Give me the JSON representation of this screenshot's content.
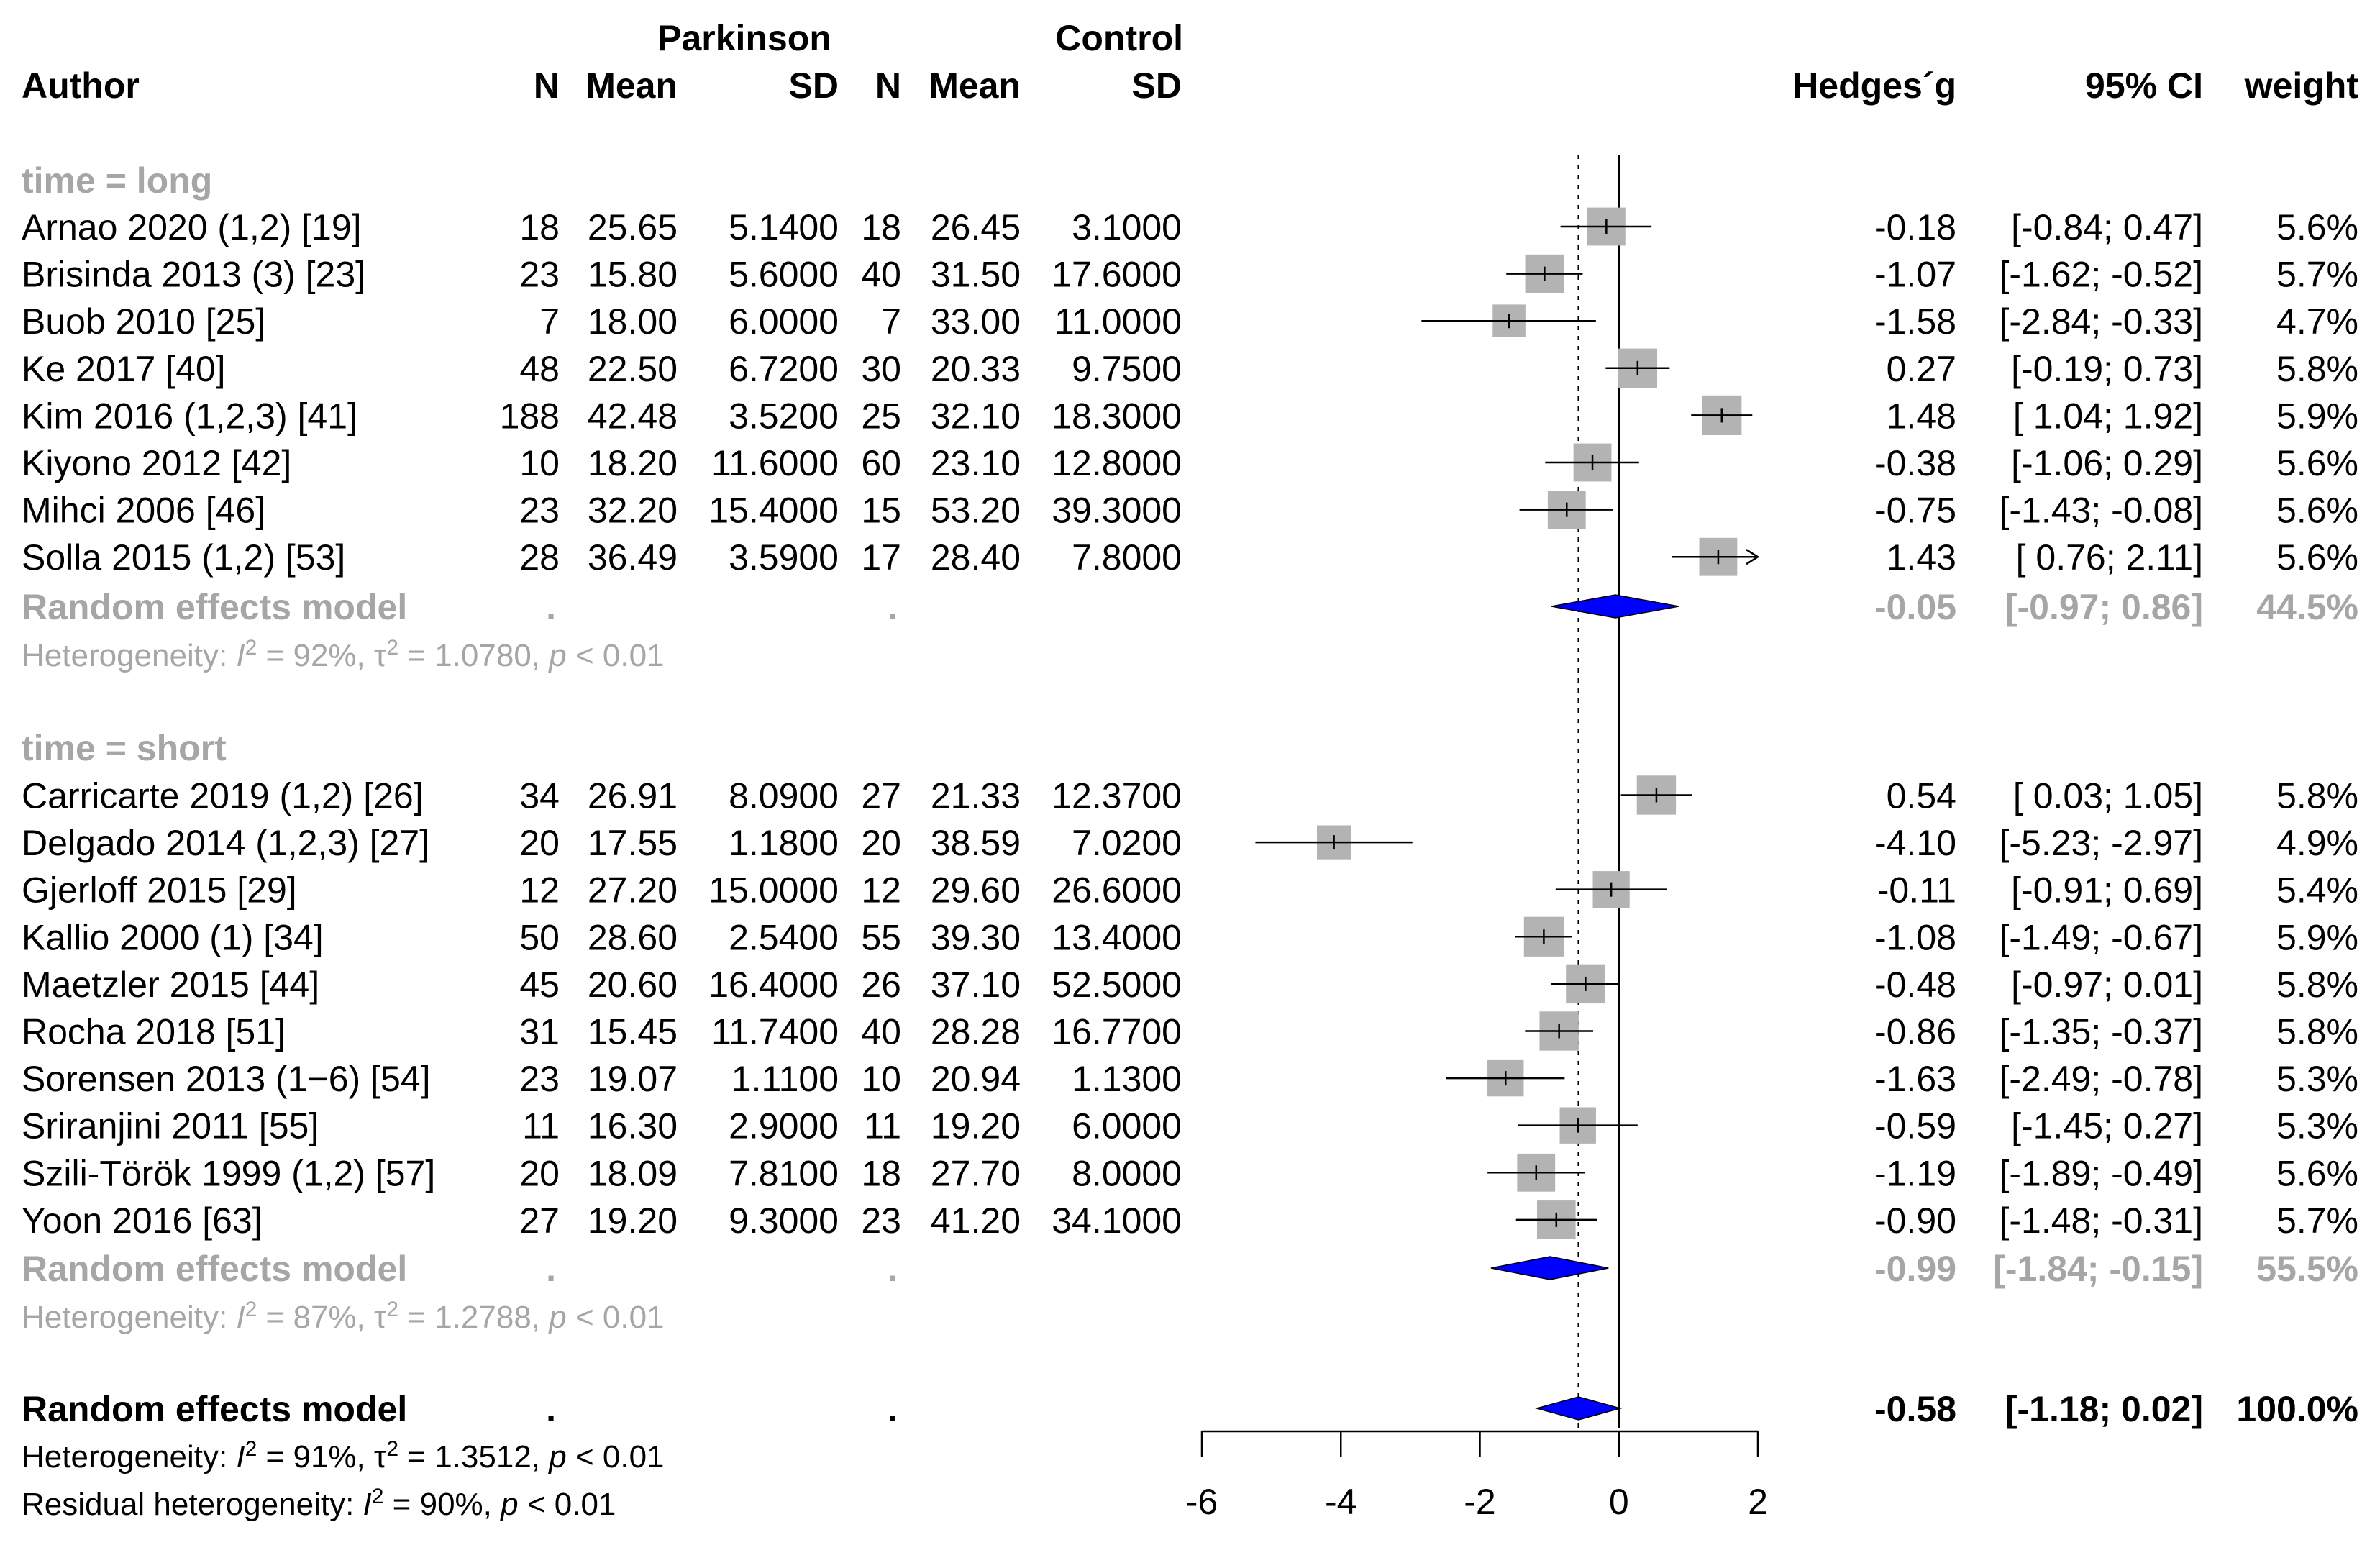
{
  "header": {
    "author": "Author",
    "group1": "Parkinson",
    "group2": "Control",
    "n": "N",
    "mean": "Mean",
    "sd": "SD",
    "effect": "Hedges´g",
    "ci": "95% CI",
    "weight": "weight"
  },
  "colors": {
    "square": "#b3b3b3",
    "diamond": "#0000ff",
    "subgroup_text": "#a6a6a6",
    "line": "#000000"
  },
  "chart_data": {
    "type": "forest",
    "xlabel": "",
    "xlim": [
      -6,
      2
    ],
    "xticks": [
      "-6",
      "-4",
      "-2",
      "0",
      "2"
    ],
    "xtick_values": [
      -6,
      -4,
      -2,
      0,
      2
    ],
    "null_line": 0,
    "overall_line": -0.58,
    "subgroups": [
      {
        "label": "time = long",
        "studies": [
          {
            "author": "Arnao 2020 (1,2) [19]",
            "n1": "18",
            "mean1": "25.65",
            "sd1": "5.1400",
            "n2": "18",
            "mean2": "26.45",
            "sd2": "3.1000",
            "g": -0.18,
            "lo": -0.84,
            "hi": 0.47,
            "g_txt": "-0.18",
            "ci_txt": "[-0.84;  0.47]",
            "w_txt": "5.6%",
            "w": 5.6
          },
          {
            "author": "Brisinda 2013 (3) [23]",
            "n1": "23",
            "mean1": "15.80",
            "sd1": "5.6000",
            "n2": "40",
            "mean2": "31.50",
            "sd2": "17.6000",
            "g": -1.07,
            "lo": -1.62,
            "hi": -0.52,
            "g_txt": "-1.07",
            "ci_txt": "[-1.62; -0.52]",
            "w_txt": "5.7%",
            "w": 5.7
          },
          {
            "author": "Buob 2010 [25]",
            "n1": "7",
            "mean1": "18.00",
            "sd1": "6.0000",
            "n2": "7",
            "mean2": "33.00",
            "sd2": "11.0000",
            "g": -1.58,
            "lo": -2.84,
            "hi": -0.33,
            "g_txt": "-1.58",
            "ci_txt": "[-2.84; -0.33]",
            "w_txt": "4.7%",
            "w": 4.7
          },
          {
            "author": "Ke 2017 [40]",
            "n1": "48",
            "mean1": "22.50",
            "sd1": "6.7200",
            "n2": "30",
            "mean2": "20.33",
            "sd2": "9.7500",
            "g": 0.27,
            "lo": -0.19,
            "hi": 0.73,
            "g_txt": "0.27",
            "ci_txt": "[-0.19;  0.73]",
            "w_txt": "5.8%",
            "w": 5.8
          },
          {
            "author": "Kim 2016 (1,2,3) [41]",
            "n1": "188",
            "mean1": "42.48",
            "sd1": "3.5200",
            "n2": "25",
            "mean2": "32.10",
            "sd2": "18.3000",
            "g": 1.48,
            "lo": 1.04,
            "hi": 1.92,
            "g_txt": "1.48",
            "ci_txt": "[ 1.04;  1.92]",
            "w_txt": "5.9%",
            "w": 5.9
          },
          {
            "author": "Kiyono 2012 [42]",
            "n1": "10",
            "mean1": "18.20",
            "sd1": "11.6000",
            "n2": "60",
            "mean2": "23.10",
            "sd2": "12.8000",
            "g": -0.38,
            "lo": -1.06,
            "hi": 0.29,
            "g_txt": "-0.38",
            "ci_txt": "[-1.06;  0.29]",
            "w_txt": "5.6%",
            "w": 5.6
          },
          {
            "author": "Mihci 2006 [46]",
            "n1": "23",
            "mean1": "32.20",
            "sd1": "15.4000",
            "n2": "15",
            "mean2": "53.20",
            "sd2": "39.3000",
            "g": -0.75,
            "lo": -1.43,
            "hi": -0.08,
            "g_txt": "-0.75",
            "ci_txt": "[-1.43; -0.08]",
            "w_txt": "5.6%",
            "w": 5.6
          },
          {
            "author": "Solla 2015 (1,2) [53]",
            "n1": "28",
            "mean1": "36.49",
            "sd1": "3.5900",
            "n2": "17",
            "mean2": "28.40",
            "sd2": "7.8000",
            "g": 1.43,
            "lo": 0.76,
            "hi": 2.11,
            "g_txt": "1.43",
            "ci_txt": "[ 0.76;  2.11]",
            "w_txt": "5.6%",
            "w": 5.6,
            "arrow": true
          }
        ],
        "model": {
          "label": "Random effects model",
          "n1": ".",
          "n2": ".",
          "g": -0.05,
          "lo": -0.97,
          "hi": 0.86,
          "g_txt": "-0.05",
          "ci_txt": "[-0.97;  0.86]",
          "w_txt": "44.5%"
        },
        "het": {
          "prefix": "Heterogeneity: ",
          "I": "I",
          "isq": "2",
          "i2_val": " = 92%, ",
          "tau": "τ",
          "tsq": "2",
          "tau_val": " = 1.0780, ",
          "p": "p",
          "p_val": " < 0.01"
        }
      },
      {
        "label": "time = short",
        "studies": [
          {
            "author": "Carricarte 2019 (1,2) [26]",
            "n1": "34",
            "mean1": "26.91",
            "sd1": "8.0900",
            "n2": "27",
            "mean2": "21.33",
            "sd2": "12.3700",
            "g": 0.54,
            "lo": 0.03,
            "hi": 1.05,
            "g_txt": "0.54",
            "ci_txt": "[ 0.03;  1.05]",
            "w_txt": "5.8%",
            "w": 5.8
          },
          {
            "author": "Delgado 2014 (1,2,3) [27]",
            "n1": "20",
            "mean1": "17.55",
            "sd1": "1.1800",
            "n2": "20",
            "mean2": "38.59",
            "sd2": "7.0200",
            "g": -4.1,
            "lo": -5.23,
            "hi": -2.97,
            "g_txt": "-4.10",
            "ci_txt": "[-5.23; -2.97]",
            "w_txt": "4.9%",
            "w": 4.9
          },
          {
            "author": "Gjerloff 2015 [29]",
            "n1": "12",
            "mean1": "27.20",
            "sd1": "15.0000",
            "n2": "12",
            "mean2": "29.60",
            "sd2": "26.6000",
            "g": -0.11,
            "lo": -0.91,
            "hi": 0.69,
            "g_txt": "-0.11",
            "ci_txt": "[-0.91;  0.69]",
            "w_txt": "5.4%",
            "w": 5.4
          },
          {
            "author": "Kallio 2000 (1) [34]",
            "n1": "50",
            "mean1": "28.60",
            "sd1": "2.5400",
            "n2": "55",
            "mean2": "39.30",
            "sd2": "13.4000",
            "g": -1.08,
            "lo": -1.49,
            "hi": -0.67,
            "g_txt": "-1.08",
            "ci_txt": "[-1.49; -0.67]",
            "w_txt": "5.9%",
            "w": 5.9
          },
          {
            "author": "Maetzler 2015 [44]",
            "n1": "45",
            "mean1": "20.60",
            "sd1": "16.4000",
            "n2": "26",
            "mean2": "37.10",
            "sd2": "52.5000",
            "g": -0.48,
            "lo": -0.97,
            "hi": 0.01,
            "g_txt": "-0.48",
            "ci_txt": "[-0.97;  0.01]",
            "w_txt": "5.8%",
            "w": 5.8
          },
          {
            "author": "Rocha 2018 [51]",
            "n1": "31",
            "mean1": "15.45",
            "sd1": "11.7400",
            "n2": "40",
            "mean2": "28.28",
            "sd2": "16.7700",
            "g": -0.86,
            "lo": -1.35,
            "hi": -0.37,
            "g_txt": "-0.86",
            "ci_txt": "[-1.35; -0.37]",
            "w_txt": "5.8%",
            "w": 5.8
          },
          {
            "author": "Sorensen 2013 (1−6) [54]",
            "n1": "23",
            "mean1": "19.07",
            "sd1": "1.1100",
            "n2": "10",
            "mean2": "20.94",
            "sd2": "1.1300",
            "g": -1.63,
            "lo": -2.49,
            "hi": -0.78,
            "g_txt": "-1.63",
            "ci_txt": "[-2.49; -0.78]",
            "w_txt": "5.3%",
            "w": 5.3
          },
          {
            "author": "Sriranjini 2011 [55]",
            "n1": "11",
            "mean1": "16.30",
            "sd1": "2.9000",
            "n2": "11",
            "mean2": "19.20",
            "sd2": "6.0000",
            "g": -0.59,
            "lo": -1.45,
            "hi": 0.27,
            "g_txt": "-0.59",
            "ci_txt": "[-1.45;  0.27]",
            "w_txt": "5.3%",
            "w": 5.3
          },
          {
            "author": "Szili-Török 1999 (1,2) [57]",
            "n1": "20",
            "mean1": "18.09",
            "sd1": "7.8100",
            "n2": "18",
            "mean2": "27.70",
            "sd2": "8.0000",
            "g": -1.19,
            "lo": -1.89,
            "hi": -0.49,
            "g_txt": "-1.19",
            "ci_txt": "[-1.89; -0.49]",
            "w_txt": "5.6%",
            "w": 5.6
          },
          {
            "author": "Yoon 2016 [63]",
            "n1": "27",
            "mean1": "19.20",
            "sd1": "9.3000",
            "n2": "23",
            "mean2": "41.20",
            "sd2": "34.1000",
            "g": -0.9,
            "lo": -1.48,
            "hi": -0.31,
            "g_txt": "-0.90",
            "ci_txt": "[-1.48; -0.31]",
            "w_txt": "5.7%",
            "w": 5.7
          }
        ],
        "model": {
          "label": "Random effects model",
          "n1": ".",
          "n2": ".",
          "g": -0.99,
          "lo": -1.84,
          "hi": -0.15,
          "g_txt": "-0.99",
          "ci_txt": "[-1.84; -0.15]",
          "w_txt": "55.5%"
        },
        "het": {
          "prefix": "Heterogeneity: ",
          "I": "I",
          "isq": "2",
          "i2_val": " = 87%, ",
          "tau": "τ",
          "tsq": "2",
          "tau_val": " = 1.2788, ",
          "p": "p",
          "p_val": " < 0.01"
        }
      }
    ],
    "overall": {
      "label": "Random effects model",
      "n1": ".",
      "n2": ".",
      "g": -0.58,
      "lo": -1.18,
      "hi": 0.02,
      "g_txt": "-0.58",
      "ci_txt": "[-1.18;  0.02]",
      "w_txt": "100.0%",
      "het": {
        "prefix": "Heterogeneity: ",
        "I": "I",
        "isq": "2",
        "i2_val": " = 91%, ",
        "tau": "τ",
        "tsq": "2",
        "tau_val": " = 1.3512, ",
        "p": "p",
        "p_val": " < 0.01"
      },
      "resid": {
        "prefix": "Residual heterogeneity: ",
        "I": "I",
        "isq": "2",
        "i2_val": " = 90%, ",
        "p": "p",
        "p_val": " < 0.01"
      }
    }
  }
}
